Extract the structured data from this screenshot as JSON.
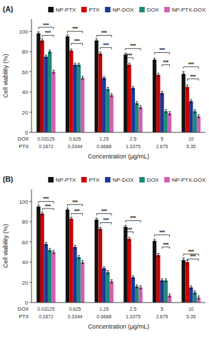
{
  "chart_data": [
    {
      "type": "bar",
      "title": "(A)",
      "ylabel": "Cell viability (%)",
      "xlabel": "Concentration (μg/mL)",
      "category_rows": [
        {
          "label": "DOX",
          "categories": [
            "0.03125",
            "0.625",
            "1.25",
            "2.5",
            "5",
            "10"
          ]
        },
        {
          "label": "PTX",
          "categories": [
            "0.1672",
            "0.3344",
            "0.6688",
            "1.3375",
            "2.675",
            "5.35"
          ]
        }
      ],
      "series": [
        {
          "name": "NP-PTX",
          "color": "#111111",
          "values": [
            98,
            95,
            91,
            77,
            72,
            58
          ],
          "errors": [
            1.5,
            1.5,
            1.5,
            1.5,
            1.5,
            2.0
          ]
        },
        {
          "name": "PTX",
          "color": "#cc0000",
          "values": [
            91,
            81,
            78,
            67,
            57,
            45
          ],
          "errors": [
            1.5,
            1.5,
            1.5,
            1.5,
            1.5,
            2.0
          ]
        },
        {
          "name": "NP-DOX",
          "color": "#1a3a9a",
          "values": [
            75,
            67,
            54,
            44,
            39,
            31
          ],
          "errors": [
            1.5,
            1.5,
            1.5,
            1.5,
            1.5,
            1.5
          ]
        },
        {
          "name": "DOX",
          "color": "#1a8a78",
          "values": [
            80,
            67,
            43,
            29,
            21,
            21
          ],
          "errors": [
            1.5,
            1.5,
            1.5,
            1.5,
            1.5,
            1.5
          ]
        },
        {
          "name": "NP-PTX-DOX",
          "color": "#d060b0",
          "values": [
            60,
            54,
            37,
            25,
            19,
            16
          ],
          "errors": [
            1.5,
            1.5,
            1.5,
            1.5,
            1.5,
            1.5
          ]
        }
      ],
      "ylim": [
        0,
        112
      ],
      "yticks": [
        0,
        20,
        40,
        60,
        80,
        100
      ],
      "grid": false,
      "legend": "upper right",
      "annotations": [
        {
          "category": 0,
          "from": "NP-PTX",
          "to": "NP-PTX-DOX",
          "y": 104,
          "text": "***"
        },
        {
          "category": 0,
          "from": "PTX",
          "to": "NP-PTX-DOX",
          "y": 96,
          "text": "***"
        },
        {
          "category": 1,
          "from": "NP-PTX",
          "to": "NP-PTX-DOX",
          "y": 100,
          "text": "***"
        },
        {
          "category": 1,
          "from": "PTX",
          "to": "NP-PTX-DOX",
          "y": 88,
          "text": "***"
        },
        {
          "category": 2,
          "from": "NP-PTX",
          "to": "NP-PTX-DOX",
          "y": 96,
          "text": "***"
        },
        {
          "category": 2,
          "from": "PTX",
          "to": "NP-PTX-DOX",
          "y": 84,
          "text": "***"
        },
        {
          "category": 3,
          "from": "NP-PTX",
          "to": "NP-PTX-DOX",
          "y": 83,
          "text": "***"
        },
        {
          "category": 3,
          "from": "NP-PTX",
          "to": "NP-DOX",
          "y": 74,
          "text": "***"
        },
        {
          "category": 4,
          "from": "NP-PTX",
          "to": "NP-PTX-DOX",
          "y": 79,
          "text": "***"
        },
        {
          "category": 4,
          "from": "NP-DOX",
          "to": "NP-PTX-DOX",
          "y": 67,
          "text": "***"
        },
        {
          "category": 5,
          "from": "NP-PTX",
          "to": "NP-PTX-DOX",
          "y": 65,
          "text": "***"
        },
        {
          "category": 5,
          "from": "PTX",
          "to": "NP-PTX-DOX",
          "y": 53,
          "text": "***"
        }
      ]
    },
    {
      "type": "bar",
      "title": "(B)",
      "ylabel": "Cell viability (%)",
      "xlabel": "Concentration (μg/mL)",
      "category_rows": [
        {
          "label": "DOX",
          "categories": [
            "0.03125",
            "0.625",
            "1.25",
            "2.5",
            "5",
            "10"
          ]
        },
        {
          "label": "PTX",
          "categories": [
            "0.1672",
            "0.3344",
            "0.6688",
            "1.3375",
            "2.675",
            "5.35"
          ]
        }
      ],
      "series": [
        {
          "name": "NP-PTX",
          "color": "#111111",
          "values": [
            95,
            92,
            82,
            75,
            61,
            42
          ],
          "errors": [
            1.5,
            1.5,
            1.5,
            1.5,
            1.5,
            2.0
          ]
        },
        {
          "name": "PTX",
          "color": "#cc0000",
          "values": [
            88,
            83,
            73,
            63,
            47,
            40
          ],
          "errors": [
            1.5,
            1.5,
            1.5,
            1.5,
            1.5,
            2.0
          ]
        },
        {
          "name": "NP-DOX",
          "color": "#1a3a9a",
          "values": [
            58,
            55,
            34,
            25,
            22,
            15
          ],
          "errors": [
            1.5,
            1.5,
            1.5,
            1.5,
            1.5,
            1.5
          ]
        },
        {
          "name": "DOX",
          "color": "#1a8a78",
          "values": [
            52,
            45,
            30,
            16,
            22,
            10
          ],
          "errors": [
            1.5,
            1.5,
            1.5,
            1.5,
            1.5,
            1.5
          ]
        },
        {
          "name": "NP-PTX-DOX",
          "color": "#d060b0",
          "values": [
            50,
            40,
            21,
            15,
            7,
            5
          ],
          "errors": [
            1.5,
            1.5,
            1.5,
            1.5,
            1.5,
            1.5
          ]
        }
      ],
      "ylim": [
        0,
        112
      ],
      "yticks": [
        0,
        20,
        40,
        60,
        80,
        100
      ],
      "grid": false,
      "legend": "upper right",
      "annotations": [
        {
          "category": 0,
          "from": "NP-PTX",
          "to": "NP-PTX-DOX",
          "y": 100,
          "text": "***"
        },
        {
          "category": 0,
          "from": "PTX",
          "to": "NP-PTX-DOX",
          "y": 93,
          "text": "***"
        },
        {
          "category": 1,
          "from": "NP-PTX",
          "to": "NP-PTX-DOX",
          "y": 97,
          "text": "***"
        },
        {
          "category": 1,
          "from": "PTX",
          "to": "NP-PTX-DOX",
          "y": 88,
          "text": "***"
        },
        {
          "category": 2,
          "from": "NP-PTX",
          "to": "NP-PTX-DOX",
          "y": 88,
          "text": "***"
        },
        {
          "category": 2,
          "from": "PTX",
          "to": "NP-PTX-DOX",
          "y": 79,
          "text": "***"
        },
        {
          "category": 3,
          "from": "NP-PTX",
          "to": "NP-PTX-DOX",
          "y": 81,
          "text": "***"
        },
        {
          "category": 3,
          "from": "NP-PTX",
          "to": "NP-DOX",
          "y": 70,
          "text": "***"
        },
        {
          "category": 4,
          "from": "NP-PTX",
          "to": "NP-PTX-DOX",
          "y": 67,
          "text": "***"
        },
        {
          "category": 4,
          "from": "NP-DOX",
          "to": "NP-PTX-DOX",
          "y": 55,
          "text": "***"
        },
        {
          "category": 5,
          "from": "NP-PTX",
          "to": "NP-PTX-DOX",
          "y": 48,
          "text": "***"
        },
        {
          "category": 5,
          "from": "PTX",
          "to": "NP-PTX-DOX",
          "y": 43,
          "text": "***"
        }
      ]
    }
  ]
}
